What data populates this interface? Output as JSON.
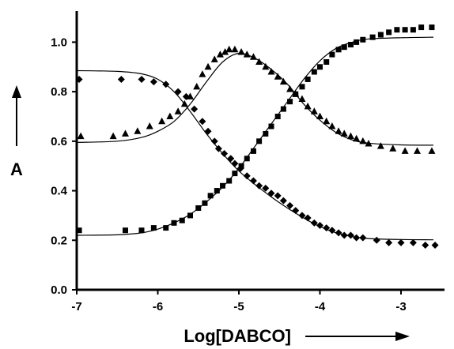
{
  "chart_data": {
    "type": "scatter",
    "xlabel": "Log[DABCO]",
    "ylabel": "A",
    "xlim": [
      -7,
      -2.5
    ],
    "ylim": [
      0,
      1.1
    ],
    "xticks": [
      "-7",
      "-6",
      "-5",
      "-4",
      "-3"
    ],
    "yticks": [
      "0.0",
      "0.2",
      "0.4",
      "0.6",
      "0.8",
      "1.0"
    ],
    "grid": false,
    "legend": "none",
    "series": [
      {
        "marker": "diamond",
        "color": "#000000",
        "points": [
          [
            -6.97,
            0.85
          ],
          [
            -6.45,
            0.85
          ],
          [
            -6.2,
            0.85
          ],
          [
            -6.05,
            0.84
          ],
          [
            -5.9,
            0.83
          ],
          [
            -5.75,
            0.8
          ],
          [
            -5.65,
            0.78
          ],
          [
            -5.55,
            0.73
          ],
          [
            -5.45,
            0.68
          ],
          [
            -5.38,
            0.64
          ],
          [
            -5.3,
            0.6
          ],
          [
            -5.25,
            0.57
          ],
          [
            -5.18,
            0.55
          ],
          [
            -5.1,
            0.53
          ],
          [
            -5.05,
            0.51
          ],
          [
            -4.98,
            0.49
          ],
          [
            -4.9,
            0.46
          ],
          [
            -4.82,
            0.44
          ],
          [
            -4.75,
            0.42
          ],
          [
            -4.67,
            0.41
          ],
          [
            -4.6,
            0.39
          ],
          [
            -4.52,
            0.38
          ],
          [
            -4.45,
            0.36
          ],
          [
            -4.37,
            0.34
          ],
          [
            -4.3,
            0.32
          ],
          [
            -4.22,
            0.3
          ],
          [
            -4.15,
            0.29
          ],
          [
            -4.07,
            0.27
          ],
          [
            -4.0,
            0.26
          ],
          [
            -3.92,
            0.25
          ],
          [
            -3.85,
            0.24
          ],
          [
            -3.77,
            0.23
          ],
          [
            -3.7,
            0.22
          ],
          [
            -3.62,
            0.22
          ],
          [
            -3.55,
            0.21
          ],
          [
            -3.47,
            0.21
          ],
          [
            -3.3,
            0.2
          ],
          [
            -3.15,
            0.19
          ],
          [
            -3.0,
            0.19
          ],
          [
            -2.85,
            0.19
          ],
          [
            -2.7,
            0.18
          ],
          [
            -2.58,
            0.18
          ]
        ]
      },
      {
        "marker": "triangle",
        "color": "#000000",
        "points": [
          [
            -6.95,
            0.62
          ],
          [
            -6.55,
            0.62
          ],
          [
            -6.4,
            0.63
          ],
          [
            -6.25,
            0.64
          ],
          [
            -6.1,
            0.66
          ],
          [
            -5.95,
            0.68
          ],
          [
            -5.85,
            0.7
          ],
          [
            -5.75,
            0.72
          ],
          [
            -5.67,
            0.75
          ],
          [
            -5.6,
            0.78
          ],
          [
            -5.52,
            0.82
          ],
          [
            -5.45,
            0.87
          ],
          [
            -5.38,
            0.9
          ],
          [
            -5.3,
            0.93
          ],
          [
            -5.23,
            0.95
          ],
          [
            -5.17,
            0.96
          ],
          [
            -5.12,
            0.97
          ],
          [
            -5.05,
            0.97
          ],
          [
            -4.97,
            0.96
          ],
          [
            -4.9,
            0.95
          ],
          [
            -4.82,
            0.94
          ],
          [
            -4.75,
            0.92
          ],
          [
            -4.67,
            0.9
          ],
          [
            -4.6,
            0.88
          ],
          [
            -4.52,
            0.86
          ],
          [
            -4.45,
            0.84
          ],
          [
            -4.37,
            0.81
          ],
          [
            -4.3,
            0.79
          ],
          [
            -4.22,
            0.77
          ],
          [
            -4.15,
            0.74
          ],
          [
            -4.07,
            0.72
          ],
          [
            -4.0,
            0.7
          ],
          [
            -3.92,
            0.68
          ],
          [
            -3.85,
            0.66
          ],
          [
            -3.77,
            0.64
          ],
          [
            -3.7,
            0.63
          ],
          [
            -3.62,
            0.62
          ],
          [
            -3.55,
            0.61
          ],
          [
            -3.47,
            0.6
          ],
          [
            -3.4,
            0.59
          ],
          [
            -3.25,
            0.58
          ],
          [
            -3.1,
            0.57
          ],
          [
            -2.95,
            0.56
          ],
          [
            -2.8,
            0.56
          ],
          [
            -2.62,
            0.56
          ]
        ]
      },
      {
        "marker": "square",
        "color": "#000000",
        "points": [
          [
            -6.97,
            0.24
          ],
          [
            -6.4,
            0.24
          ],
          [
            -6.2,
            0.24
          ],
          [
            -6.05,
            0.25
          ],
          [
            -5.9,
            0.25
          ],
          [
            -5.8,
            0.27
          ],
          [
            -5.7,
            0.28
          ],
          [
            -5.6,
            0.3
          ],
          [
            -5.5,
            0.33
          ],
          [
            -5.42,
            0.35
          ],
          [
            -5.35,
            0.38
          ],
          [
            -5.27,
            0.4
          ],
          [
            -5.2,
            0.42
          ],
          [
            -5.12,
            0.44
          ],
          [
            -5.05,
            0.47
          ],
          [
            -4.97,
            0.5
          ],
          [
            -4.9,
            0.53
          ],
          [
            -4.82,
            0.56
          ],
          [
            -4.75,
            0.6
          ],
          [
            -4.67,
            0.63
          ],
          [
            -4.6,
            0.66
          ],
          [
            -4.52,
            0.7
          ],
          [
            -4.45,
            0.73
          ],
          [
            -4.37,
            0.76
          ],
          [
            -4.3,
            0.79
          ],
          [
            -4.22,
            0.82
          ],
          [
            -4.15,
            0.85
          ],
          [
            -4.07,
            0.88
          ],
          [
            -4.0,
            0.9
          ],
          [
            -3.92,
            0.92
          ],
          [
            -3.85,
            0.95
          ],
          [
            -3.77,
            0.97
          ],
          [
            -3.7,
            0.98
          ],
          [
            -3.62,
            0.99
          ],
          [
            -3.55,
            1.0
          ],
          [
            -3.47,
            1.01
          ],
          [
            -3.35,
            1.02
          ],
          [
            -3.25,
            1.03
          ],
          [
            -3.15,
            1.04
          ],
          [
            -3.05,
            1.05
          ],
          [
            -2.95,
            1.05
          ],
          [
            -2.85,
            1.05
          ],
          [
            -2.75,
            1.06
          ],
          [
            -2.62,
            1.06
          ]
        ]
      }
    ],
    "fits": [
      {
        "label": "fit-diamond",
        "points": [
          [
            -7.0,
            0.885
          ],
          [
            -6.5,
            0.882
          ],
          [
            -6.2,
            0.872
          ],
          [
            -6.0,
            0.85
          ],
          [
            -5.8,
            0.8
          ],
          [
            -5.6,
            0.72
          ],
          [
            -5.4,
            0.63
          ],
          [
            -5.2,
            0.55
          ],
          [
            -5.0,
            0.48
          ],
          [
            -4.8,
            0.425
          ],
          [
            -4.6,
            0.375
          ],
          [
            -4.4,
            0.33
          ],
          [
            -4.2,
            0.29
          ],
          [
            -4.0,
            0.255
          ],
          [
            -3.8,
            0.23
          ],
          [
            -3.6,
            0.215
          ],
          [
            -3.4,
            0.207
          ],
          [
            -3.0,
            0.203
          ],
          [
            -2.6,
            0.202
          ]
        ]
      },
      {
        "label": "fit-triangle",
        "points": [
          [
            -7.0,
            0.595
          ],
          [
            -6.5,
            0.6
          ],
          [
            -6.2,
            0.615
          ],
          [
            -6.0,
            0.64
          ],
          [
            -5.8,
            0.68
          ],
          [
            -5.6,
            0.75
          ],
          [
            -5.4,
            0.84
          ],
          [
            -5.2,
            0.92
          ],
          [
            -5.0,
            0.955
          ],
          [
            -4.8,
            0.935
          ],
          [
            -4.6,
            0.89
          ],
          [
            -4.4,
            0.83
          ],
          [
            -4.2,
            0.75
          ],
          [
            -4.0,
            0.685
          ],
          [
            -3.8,
            0.635
          ],
          [
            -3.6,
            0.605
          ],
          [
            -3.4,
            0.592
          ],
          [
            -3.0,
            0.585
          ],
          [
            -2.6,
            0.584
          ]
        ]
      },
      {
        "label": "fit-square",
        "points": [
          [
            -7.0,
            0.22
          ],
          [
            -6.5,
            0.222
          ],
          [
            -6.2,
            0.23
          ],
          [
            -6.0,
            0.245
          ],
          [
            -5.8,
            0.27
          ],
          [
            -5.6,
            0.305
          ],
          [
            -5.4,
            0.355
          ],
          [
            -5.2,
            0.415
          ],
          [
            -5.0,
            0.49
          ],
          [
            -4.8,
            0.58
          ],
          [
            -4.6,
            0.67
          ],
          [
            -4.4,
            0.76
          ],
          [
            -4.2,
            0.85
          ],
          [
            -4.0,
            0.925
          ],
          [
            -3.8,
            0.975
          ],
          [
            -3.6,
            1.0
          ],
          [
            -3.4,
            1.013
          ],
          [
            -3.0,
            1.018
          ],
          [
            -2.6,
            1.02
          ]
        ]
      }
    ]
  }
}
